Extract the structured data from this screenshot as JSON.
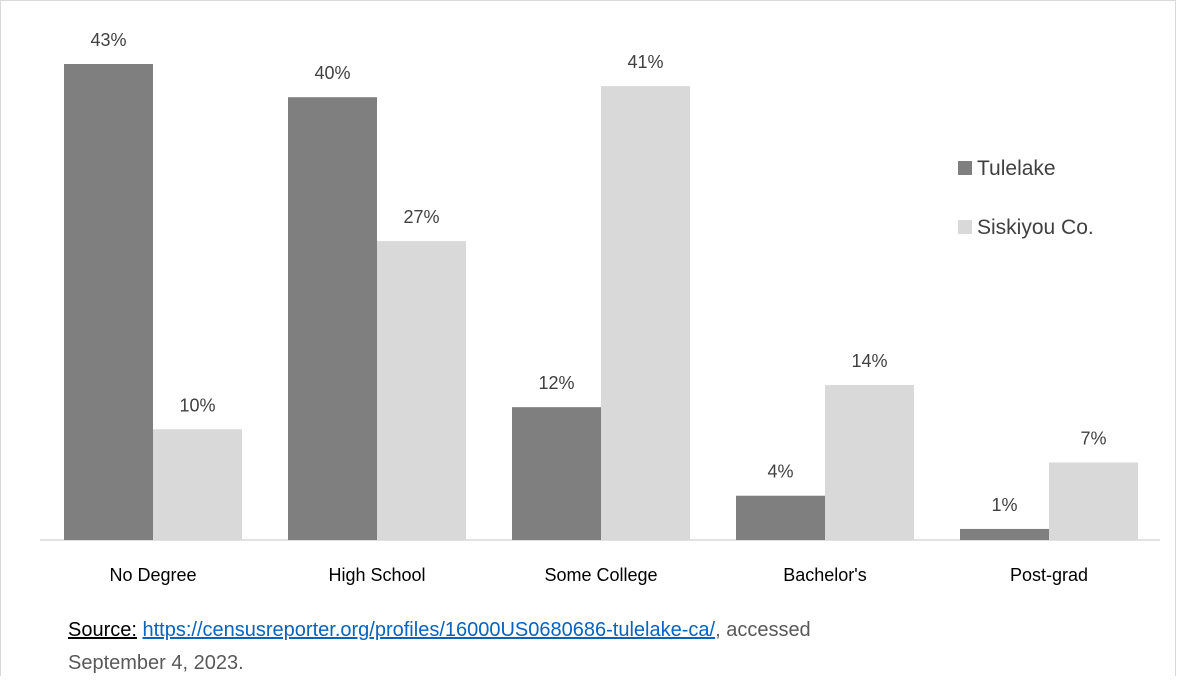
{
  "chart_data": {
    "type": "bar",
    "categories": [
      "No Degree",
      "High School",
      "Some College",
      "Bachelor's",
      "Post-grad"
    ],
    "series": [
      {
        "name": "Tulelake",
        "values": [
          43,
          40,
          12,
          4,
          1
        ],
        "color": "#7f7f7f"
      },
      {
        "name": "Siskiyou Co.",
        "values": [
          10,
          27,
          41,
          14,
          7
        ],
        "color": "#d9d9d9"
      }
    ],
    "value_labels": [
      [
        "43%",
        "40%",
        "12%",
        "4%",
        "1%"
      ],
      [
        "10%",
        "27%",
        "41%",
        "14%",
        "7%"
      ]
    ],
    "ylim": [
      0,
      43
    ],
    "grid": false,
    "legend_position": "right"
  },
  "source": {
    "label": "Source:",
    "link": "https://censusreporter.org/profiles/16000US0680686-tulelake-ca/",
    "suffix": ", accessed",
    "line2": "September 4, 2023."
  }
}
